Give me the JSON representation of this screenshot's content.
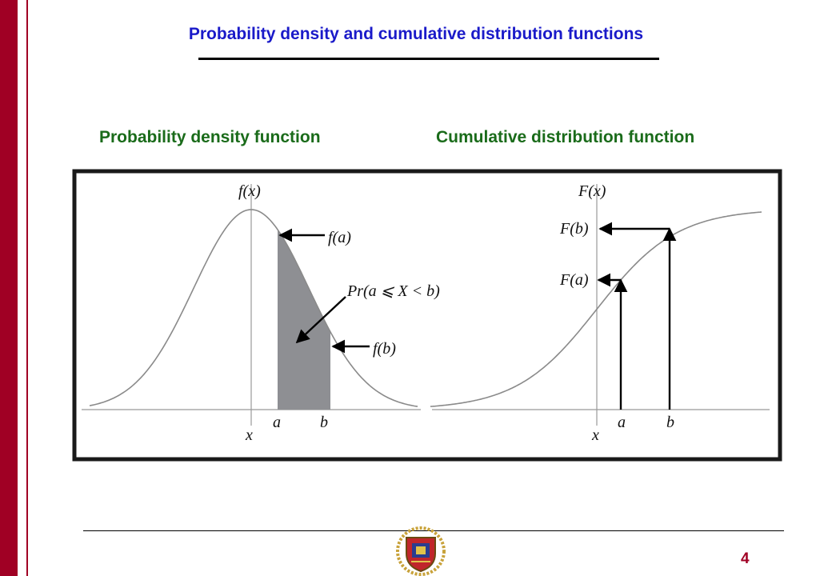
{
  "slide": {
    "title": "Probability density and cumulative distribution functions",
    "page_number": "4",
    "accent_color": "#a00024",
    "title_color": "#1a1ac9",
    "heading_color": "#1a6b1a"
  },
  "headings": {
    "pdf": "Probability density function",
    "cdf": "Cumulative distribution function"
  },
  "pdf_panel": {
    "y_label": "f(x)",
    "x_label": "x",
    "a_label": "a",
    "b_label": "b",
    "fa_label": "f(a)",
    "fb_label": "f(b)",
    "area_label": "Pr(a ⩽ X < b)",
    "shade_color": "#8e8f93"
  },
  "cdf_panel": {
    "y_label": "F(x)",
    "x_label": "x",
    "a_label": "a",
    "b_label": "b",
    "Fa_label": "F(a)",
    "Fb_label": "F(b)"
  },
  "footer": {
    "logo": "university-crest-icon"
  }
}
